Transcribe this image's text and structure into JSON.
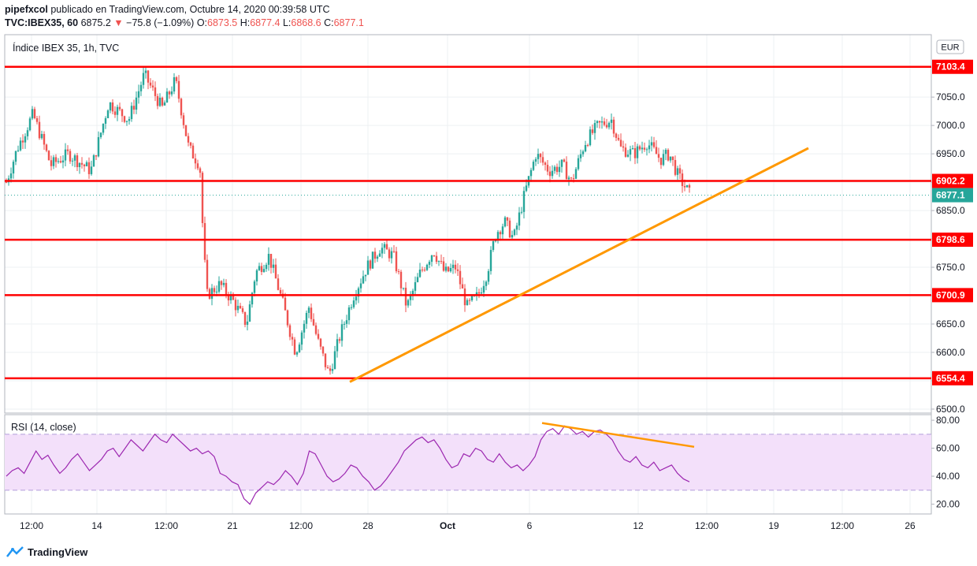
{
  "header": {
    "author": "pipefxcol",
    "published_text": "publicado en TradingView.com, Octubre 14, 2020 00:39:58 UTC",
    "symbol": "TVC:IBEX35, 60",
    "last": "6875.2",
    "change_arrow": "▼",
    "change": "−75.8 (−1.09%)",
    "o_label": "O:",
    "o_value": "6873.5",
    "h_label": "H:",
    "h_value": "6877.4",
    "l_label": "L:",
    "l_value": "6868.6",
    "c_label": "C:",
    "c_value": "6877.1"
  },
  "pane_title": "Índice IBEX 35, 1h, TVC",
  "currency_badge": "EUR",
  "rsi_title": "RSI (14, close)",
  "footer_brand": "TradingView",
  "colors": {
    "up": "#26a69a",
    "down": "#ef5350",
    "level_line": "#ff0000",
    "trendline": "#ff9800",
    "rsi_line": "#9c27b0",
    "rsi_band": "#f3e0fa"
  },
  "chart_data": [
    {
      "type": "candlestick",
      "title": "Índice IBEX 35, 1h, TVC",
      "currency": "EUR",
      "x_ticks": [
        "12:00",
        "14",
        "12:00",
        "21",
        "12:00",
        "28",
        "Oct",
        "6",
        "12",
        "12:00",
        "19",
        "12:00",
        "26"
      ],
      "y_ticks": [
        6500.0,
        6550.0,
        6600.0,
        6650.0,
        6700.0,
        6750.0,
        6800.0,
        6850.0,
        6900.0,
        6950.0,
        7000.0,
        7050.0
      ],
      "ylim": [
        6493,
        7160
      ],
      "horizontal_levels": [
        "7103.4",
        "6902.2",
        "6798.6",
        "6700.9",
        "6554.4"
      ],
      "last_price_label": "6877.1",
      "close_path": [
        {
          "x": 0.0,
          "y": 6900
        },
        {
          "x": 0.05,
          "y": 6960
        },
        {
          "x": 0.12,
          "y": 7020
        },
        {
          "x": 0.2,
          "y": 6930
        },
        {
          "x": 0.28,
          "y": 6950
        },
        {
          "x": 0.38,
          "y": 6920
        },
        {
          "x": 0.46,
          "y": 7040
        },
        {
          "x": 0.55,
          "y": 7010
        },
        {
          "x": 0.62,
          "y": 7090
        },
        {
          "x": 0.7,
          "y": 7030
        },
        {
          "x": 0.76,
          "y": 7080
        },
        {
          "x": 0.82,
          "y": 6960
        },
        {
          "x": 0.87,
          "y": 6930
        },
        {
          "x": 0.88,
          "y": 6840
        },
        {
          "x": 0.9,
          "y": 6700
        },
        {
          "x": 0.96,
          "y": 6720
        },
        {
          "x": 1.02,
          "y": 6690
        },
        {
          "x": 1.08,
          "y": 6650
        },
        {
          "x": 1.12,
          "y": 6740
        },
        {
          "x": 1.18,
          "y": 6770
        },
        {
          "x": 1.24,
          "y": 6690
        },
        {
          "x": 1.3,
          "y": 6600
        },
        {
          "x": 1.36,
          "y": 6680
        },
        {
          "x": 1.4,
          "y": 6620
        },
        {
          "x": 1.45,
          "y": 6560
        },
        {
          "x": 1.5,
          "y": 6630
        },
        {
          "x": 1.56,
          "y": 6700
        },
        {
          "x": 1.62,
          "y": 6750
        },
        {
          "x": 1.68,
          "y": 6785
        },
        {
          "x": 1.74,
          "y": 6770
        },
        {
          "x": 1.8,
          "y": 6680
        },
        {
          "x": 1.86,
          "y": 6740
        },
        {
          "x": 1.92,
          "y": 6780
        },
        {
          "x": 1.97,
          "y": 6740
        },
        {
          "x": 2.02,
          "y": 6750
        },
        {
          "x": 2.07,
          "y": 6680
        },
        {
          "x": 2.12,
          "y": 6700
        },
        {
          "x": 2.16,
          "y": 6740
        },
        {
          "x": 2.2,
          "y": 6810
        },
        {
          "x": 2.24,
          "y": 6830
        },
        {
          "x": 2.28,
          "y": 6800
        },
        {
          "x": 2.33,
          "y": 6880
        },
        {
          "x": 2.38,
          "y": 6950
        },
        {
          "x": 2.44,
          "y": 6920
        },
        {
          "x": 2.5,
          "y": 6930
        },
        {
          "x": 2.54,
          "y": 6900
        },
        {
          "x": 2.6,
          "y": 6970
        },
        {
          "x": 2.66,
          "y": 7000
        },
        {
          "x": 2.72,
          "y": 7010
        },
        {
          "x": 2.76,
          "y": 6960
        },
        {
          "x": 2.82,
          "y": 6950
        },
        {
          "x": 2.88,
          "y": 6970
        },
        {
          "x": 2.94,
          "y": 6940
        },
        {
          "x": 2.98,
          "y": 6950
        },
        {
          "x": 3.02,
          "y": 6910
        },
        {
          "x": 3.07,
          "y": 6880
        }
      ]
    },
    {
      "type": "line",
      "title": "RSI (14, close)",
      "y_ticks": [
        20.0,
        40.0,
        60.0,
        80.0
      ],
      "ylim": [
        13,
        84
      ],
      "bands": [
        30,
        70
      ],
      "series": [
        {
          "values": [
            40,
            44,
            46,
            42,
            50,
            58,
            52,
            55,
            48,
            42,
            46,
            52,
            56,
            50,
            44,
            48,
            52,
            58,
            60,
            54,
            60,
            66,
            62,
            58,
            64,
            70,
            66,
            64,
            70,
            66,
            62,
            58,
            60,
            56,
            58,
            54,
            42,
            40,
            36,
            34,
            24,
            20,
            28,
            32,
            36,
            34,
            38,
            44,
            40,
            34,
            42,
            58,
            56,
            48,
            40,
            36,
            38,
            42,
            48,
            46,
            40,
            36,
            30,
            33,
            38,
            44,
            50,
            58,
            62,
            66,
            68,
            64,
            66,
            60,
            52,
            46,
            48,
            56,
            54,
            60,
            58,
            52,
            50,
            56,
            50,
            46,
            48,
            44,
            48,
            54,
            66,
            72,
            74,
            70,
            76,
            74,
            70,
            72,
            68,
            72,
            73,
            70,
            66,
            58,
            52,
            50,
            54,
            48,
            46,
            50,
            44,
            46,
            48,
            42,
            38,
            36
          ]
        }
      ],
      "divergence_line": [
        {
          "x": 0.0,
          "y": 78
        },
        {
          "x": 1.0,
          "y": 61
        }
      ]
    }
  ]
}
